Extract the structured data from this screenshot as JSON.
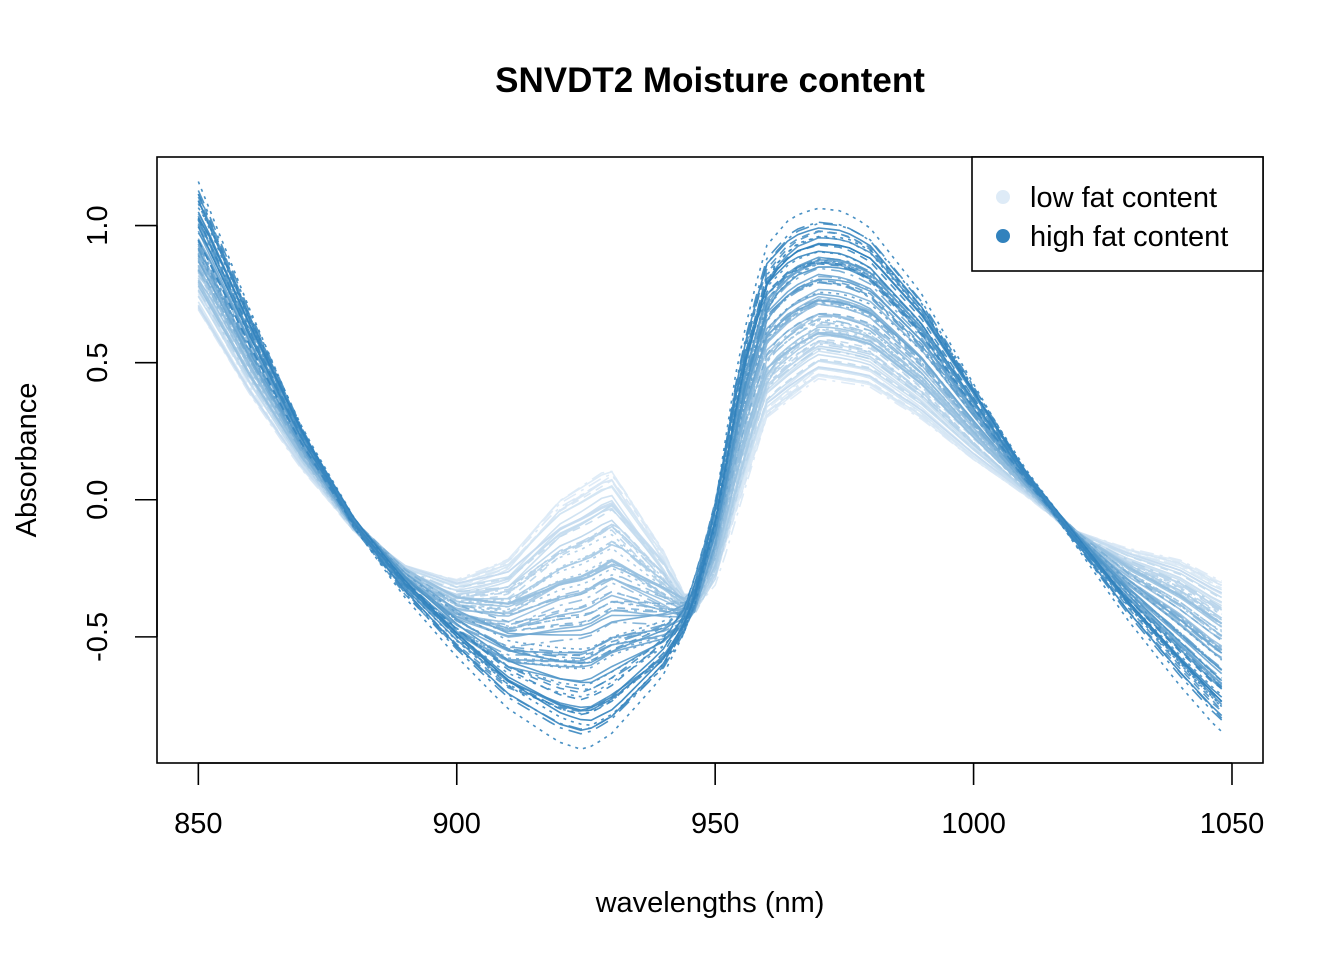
{
  "chart_data": {
    "type": "line",
    "title": "SNVDT2 Moisture content",
    "xlabel": "wavelengths (nm)",
    "ylabel": "Absorbance",
    "xlim": [
      842,
      1056
    ],
    "ylim": [
      -0.96,
      1.25
    ],
    "x_ticks": [
      850,
      900,
      950,
      1000,
      1050
    ],
    "x_tick_labels": [
      "850",
      "900",
      "950",
      "1000",
      "1050"
    ],
    "y_ticks": [
      -0.5,
      0.0,
      0.5,
      1.0
    ],
    "y_tick_labels": [
      "-0.5",
      "0.0",
      "0.5",
      "1.0"
    ],
    "x_range": [
      850,
      1048
    ],
    "grid": false,
    "legend": {
      "position": "top-right",
      "entries": [
        {
          "label": "low fat content",
          "color": "#deebf7"
        },
        {
          "label": "high fat content",
          "color": "#3182bd"
        }
      ]
    },
    "representative_series": [
      {
        "name": "low fat content",
        "color": "#deebf7",
        "x": [
          850,
          860,
          870,
          880,
          890,
          900,
          910,
          920,
          930,
          940,
          945,
          950,
          960,
          970,
          980,
          990,
          1000,
          1010,
          1020,
          1030,
          1040,
          1048
        ],
        "y": [
          0.72,
          0.4,
          0.12,
          -0.1,
          -0.25,
          -0.3,
          -0.22,
          0.0,
          0.12,
          -0.18,
          -0.4,
          -0.3,
          0.3,
          0.45,
          0.42,
          0.3,
          0.15,
          0.02,
          -0.12,
          -0.18,
          -0.22,
          -0.3
        ]
      },
      {
        "name": "high fat content",
        "color": "#3182bd",
        "x": [
          850,
          860,
          870,
          880,
          890,
          900,
          910,
          920,
          925,
          930,
          940,
          945,
          950,
          955,
          960,
          965,
          970,
          975,
          980,
          990,
          1000,
          1010,
          1020,
          1030,
          1040,
          1048
        ],
        "y": [
          1.08,
          0.65,
          0.25,
          -0.08,
          -0.32,
          -0.52,
          -0.7,
          -0.82,
          -0.85,
          -0.8,
          -0.6,
          -0.42,
          -0.05,
          0.5,
          0.85,
          0.95,
          0.98,
          0.97,
          0.92,
          0.7,
          0.4,
          0.1,
          -0.15,
          -0.4,
          -0.62,
          -0.78
        ]
      }
    ]
  }
}
